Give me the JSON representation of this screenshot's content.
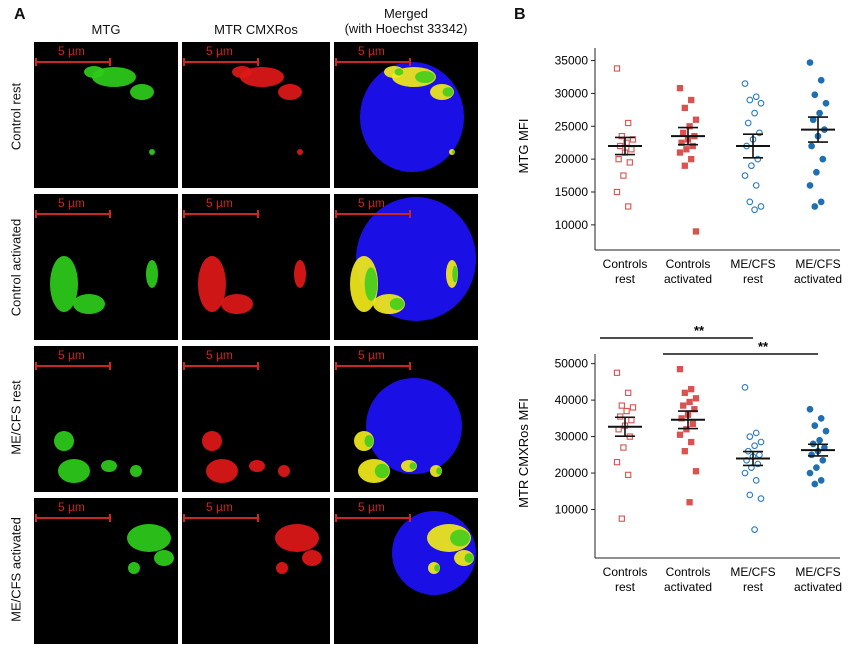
{
  "panel_a": {
    "letter": "A",
    "columns": [
      "MTG",
      "MTR CMXRos",
      "Merged",
      "(with Hoechst 33342)"
    ],
    "rows": [
      "Control rest",
      "Control activated",
      "ME/CFS rest",
      "ME/CFS activated"
    ],
    "scale_bar_label": "5 µm",
    "colors": {
      "mtg": "#2ecc1a",
      "mtr": "#e01818",
      "hoechst": "#1a10e6",
      "overlap": "#f2ea1a",
      "scale_bar": "#c8281e"
    }
  },
  "panel_b": {
    "letter": "B",
    "significance": [
      "**",
      "**"
    ]
  },
  "chart_data": [
    {
      "type": "scatter",
      "ylabel": "MTG MFI",
      "xlabel": "",
      "ylim": [
        8000,
        36000
      ],
      "yticks": [
        10000,
        15000,
        20000,
        25000,
        30000,
        35000
      ],
      "categories": [
        [
          "Controls",
          "rest"
        ],
        [
          "Controls",
          "activated"
        ],
        [
          "ME/CFS",
          "rest"
        ],
        [
          "ME/CFS",
          "activated"
        ]
      ],
      "series": [
        {
          "marker": "open-square",
          "color": "#d9534f",
          "values": [
            33800,
            25500,
            23500,
            23000,
            22500,
            22000,
            21500,
            21000,
            20000,
            19500,
            17500,
            15000,
            12800
          ]
        },
        {
          "marker": "filled-square",
          "color": "#d9534f",
          "values": [
            30800,
            29000,
            27800,
            26000,
            25000,
            24000,
            23500,
            23000,
            22500,
            22000,
            21500,
            21000,
            20000,
            19000,
            9000
          ]
        },
        {
          "marker": "open-circle",
          "color": "#2a7bbf",
          "values": [
            31500,
            29500,
            29000,
            28500,
            27000,
            25500,
            24000,
            23000,
            22000,
            20000,
            19000,
            17500,
            16000,
            13500,
            12800,
            12300
          ]
        },
        {
          "marker": "filled-circle",
          "color": "#1f6fb2",
          "values": [
            34700,
            32000,
            29800,
            28500,
            27000,
            26000,
            24500,
            23500,
            22000,
            20000,
            18000,
            16000,
            13500,
            12800
          ]
        }
      ],
      "means": [
        22000,
        23500,
        22000,
        24500
      ],
      "sem": [
        1300,
        1300,
        1800,
        1900
      ]
    },
    {
      "type": "scatter",
      "ylabel": "MTR CMXRos MFI",
      "xlabel": "",
      "ylim": [
        0,
        51000
      ],
      "yticks": [
        10000,
        20000,
        30000,
        40000,
        50000
      ],
      "categories": [
        [
          "Controls",
          "rest"
        ],
        [
          "Controls",
          "activated"
        ],
        [
          "ME/CFS",
          "rest"
        ],
        [
          "ME/CFS",
          "activated"
        ]
      ],
      "series": [
        {
          "marker": "open-square",
          "color": "#d9534f",
          "values": [
            47500,
            42000,
            38500,
            38000,
            37000,
            35500,
            34500,
            33000,
            32000,
            30000,
            27000,
            23000,
            19500,
            7500
          ]
        },
        {
          "marker": "filled-square",
          "color": "#d9534f",
          "values": [
            48500,
            43000,
            42000,
            40500,
            39500,
            38500,
            37500,
            36000,
            35000,
            33500,
            32000,
            30500,
            28500,
            26000,
            20500,
            12000
          ]
        },
        {
          "marker": "open-circle",
          "color": "#2a7bbf",
          "values": [
            43500,
            31000,
            30000,
            28500,
            27500,
            26000,
            25000,
            24500,
            23500,
            22500,
            21500,
            20000,
            18000,
            14000,
            13000,
            4500
          ]
        },
        {
          "marker": "filled-circle",
          "color": "#1f6fb2",
          "values": [
            37500,
            35000,
            33000,
            31500,
            29000,
            28000,
            27000,
            26000,
            25000,
            23500,
            21500,
            20000,
            18000,
            17000
          ]
        }
      ],
      "means": [
        32700,
        34600,
        24000,
        26300
      ],
      "sem": [
        2600,
        2400,
        1900,
        1600
      ],
      "significance_brackets": [
        {
          "from": 0,
          "to": 2,
          "label": "**",
          "y": 52000
        },
        {
          "from": 1,
          "to": 3,
          "label": "**",
          "y": 48500
        }
      ]
    }
  ]
}
